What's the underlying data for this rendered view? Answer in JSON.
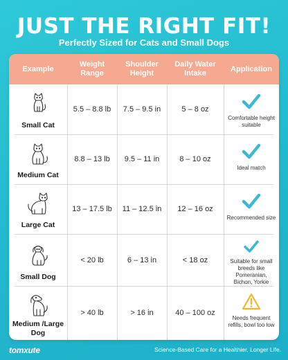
{
  "header": {
    "title": "JUST THE RIGHT FIT!",
    "subtitle": "Perfectly Sized for Cats and Small Dogs"
  },
  "table": {
    "columns": [
      "Example",
      "Weight Range",
      "Shoulder Height",
      "Daily Water Intake",
      "Application"
    ],
    "rows": [
      {
        "label": "Small Cat",
        "icon": "small-cat-icon",
        "weight": "5.5 – 8.8 lb",
        "height": "7.5 – 9.5 in",
        "water": "5 – 8 oz",
        "status": "check",
        "application": "Comfortable height suitable"
      },
      {
        "label": "Medium Cat",
        "icon": "medium-cat-icon",
        "weight": "8.8 – 13 lb",
        "height": "9.5 – 11 in",
        "water": "8 – 10 oz",
        "status": "check",
        "application": "Ideal match"
      },
      {
        "label": "Large Cat",
        "icon": "large-cat-icon",
        "weight": "13 – 17.5 lb",
        "height": "11 – 12.5 in",
        "water": "12 – 16 oz",
        "status": "check",
        "application": "Recommended size"
      },
      {
        "label": "Small Dog",
        "icon": "small-dog-icon",
        "weight": "< 20 lb",
        "height": "6 – 13 in",
        "water": "< 18 oz",
        "status": "check",
        "application": "Suitable for small breeds like Pomeranian, Bichon, Yorkie"
      },
      {
        "label": "Medium /Large Dog",
        "icon": "large-dog-icon",
        "weight": "> 40 lb",
        "height": "> 16 in",
        "water": "40 – 100 oz",
        "status": "warning",
        "application": "Needs frequent refills, bowl too low"
      }
    ]
  },
  "footer": {
    "brand": "tomxute",
    "tagline": "Science-Based Care for a Healthier, Longer Life."
  },
  "colors": {
    "background": "#22b9cf",
    "header_row": "#f4a990",
    "check": "#3fb7cc",
    "warning": "#f2b62a"
  }
}
